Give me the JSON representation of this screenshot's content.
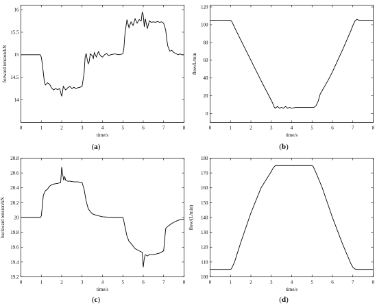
{
  "chart_data": [
    {
      "id": "a",
      "type": "line",
      "caption": "(a)",
      "xlabel": "time/s",
      "ylabel": "forward tension/kN",
      "xlim": [
        0,
        8
      ],
      "ylim": [
        13.5,
        16.1
      ],
      "xticks": [
        0,
        1,
        2,
        3,
        4,
        5,
        6,
        7,
        8
      ],
      "yticks": [
        14,
        14.5,
        15,
        15.5,
        16
      ],
      "ytick_labels": [
        "14",
        "14.5",
        "15",
        "15.5",
        "16"
      ],
      "series": [
        {
          "x": [
            0,
            0.95,
            1.0,
            1.05,
            1.1,
            1.15,
            1.2,
            1.25,
            1.3,
            1.4,
            1.5,
            1.6,
            1.7,
            1.8,
            1.9,
            2.0,
            2.03,
            2.08,
            2.15,
            2.2,
            2.3,
            2.4,
            2.5,
            2.6,
            2.7,
            2.8,
            2.9,
            3.0,
            3.1,
            3.15,
            3.2,
            3.25,
            3.3,
            3.35,
            3.4,
            3.5,
            3.55,
            3.6,
            3.7,
            3.8,
            3.9,
            4.0,
            4.1,
            4.2,
            4.3,
            4.4,
            4.6,
            4.8,
            5.0,
            5.05,
            5.1,
            5.2,
            5.3,
            5.4,
            5.5,
            5.6,
            5.7,
            5.8,
            5.9,
            5.95,
            6.0,
            6.05,
            6.1,
            6.2,
            6.3,
            6.4,
            6.5,
            6.6,
            6.7,
            6.8,
            6.9,
            7.0,
            7.1,
            7.15,
            7.2,
            7.3,
            7.4,
            7.5,
            7.6,
            7.7,
            7.8,
            7.9,
            8.0
          ],
          "y": [
            15.0,
            15.0,
            14.95,
            14.8,
            14.6,
            14.4,
            14.33,
            14.35,
            14.38,
            14.35,
            14.27,
            14.22,
            14.25,
            14.23,
            14.25,
            14.08,
            14.15,
            14.3,
            14.25,
            14.22,
            14.27,
            14.3,
            14.25,
            14.28,
            14.25,
            14.27,
            14.28,
            14.3,
            14.6,
            14.95,
            15.03,
            14.9,
            14.8,
            14.85,
            15.02,
            14.98,
            14.92,
            15.05,
            14.95,
            15.07,
            14.98,
            14.95,
            15.0,
            15.03,
            14.98,
            15.0,
            15.02,
            15.0,
            15.02,
            15.15,
            15.45,
            15.78,
            15.6,
            15.73,
            15.65,
            15.8,
            15.7,
            15.78,
            15.75,
            15.95,
            15.88,
            15.62,
            15.8,
            15.58,
            15.75,
            15.72,
            15.73,
            15.72,
            15.74,
            15.72,
            15.73,
            15.7,
            15.55,
            15.35,
            15.2,
            15.08,
            15.1,
            15.05,
            15.03,
            15.0,
            15.02,
            15.0,
            15.0
          ]
        }
      ]
    },
    {
      "id": "b",
      "type": "line",
      "caption": "(b)",
      "xlabel": "time/s",
      "ylabel": "flow/L/min",
      "xlim": [
        0,
        8
      ],
      "ylim": [
        -10,
        122
      ],
      "xticks": [
        0,
        1,
        2,
        3,
        4,
        5,
        6,
        7,
        8
      ],
      "yticks": [
        0,
        20,
        40,
        60,
        80,
        100,
        120
      ],
      "ytick_labels": [
        "0",
        "20",
        "40",
        "60",
        "80",
        "100",
        "120"
      ],
      "series": [
        {
          "x": [
            0,
            1.0,
            1.05,
            1.1,
            1.2,
            1.5,
            2.0,
            2.5,
            3.0,
            3.1,
            3.15,
            3.2,
            3.3,
            3.4,
            3.5,
            3.6,
            3.7,
            3.8,
            3.9,
            4.0,
            4.2,
            4.4,
            4.6,
            4.8,
            5.0,
            5.1,
            5.2,
            5.3,
            5.4,
            5.5,
            5.6,
            5.8,
            6.0,
            6.5,
            6.9,
            7.0,
            7.1,
            7.2,
            7.3,
            7.5,
            8.0
          ],
          "y": [
            105,
            105,
            104,
            102,
            97,
            83,
            60,
            37,
            15,
            10,
            7,
            6,
            8,
            6,
            7,
            6,
            8,
            6,
            7,
            6,
            7,
            7,
            7,
            7,
            7,
            7,
            9,
            14,
            22,
            26,
            30,
            38,
            47,
            72,
            93,
            99,
            104,
            106,
            105,
            105,
            105
          ]
        }
      ]
    },
    {
      "id": "c",
      "type": "line",
      "caption": "(c)",
      "xlabel": "time/s",
      "ylabel": "backward tension/kN",
      "xlim": [
        0,
        8
      ],
      "ylim": [
        19.2,
        20.8
      ],
      "xticks": [
        0,
        1,
        2,
        3,
        4,
        5,
        6,
        7,
        8
      ],
      "yticks": [
        19.2,
        19.4,
        19.6,
        19.8,
        20,
        20.2,
        20.4,
        20.6,
        20.8
      ],
      "ytick_labels": [
        "19.2",
        "19.4",
        "19.6",
        "19.8",
        "20",
        "20.2",
        "20.4",
        "20.6",
        "20.8"
      ],
      "series": [
        {
          "x": [
            0,
            0.95,
            1.0,
            1.05,
            1.1,
            1.2,
            1.3,
            1.4,
            1.5,
            1.6,
            1.8,
            1.95,
            2.0,
            2.05,
            2.1,
            2.15,
            2.2,
            2.3,
            2.4,
            2.6,
            2.8,
            3.0,
            3.1,
            3.2,
            3.3,
            3.4,
            3.5,
            3.7,
            4.0,
            4.5,
            5.0,
            5.05,
            5.1,
            5.2,
            5.3,
            5.4,
            5.6,
            5.8,
            5.95,
            6.0,
            6.05,
            6.1,
            6.2,
            6.3,
            6.5,
            6.8,
            7.0,
            7.05,
            7.1,
            7.2,
            7.4,
            7.6,
            7.8,
            8.0
          ],
          "y": [
            20.0,
            20.0,
            20.02,
            20.15,
            20.3,
            20.36,
            20.38,
            20.42,
            20.44,
            20.45,
            20.46,
            20.47,
            20.68,
            20.58,
            20.5,
            20.55,
            20.5,
            20.49,
            20.49,
            20.48,
            20.48,
            20.47,
            20.38,
            20.22,
            20.12,
            20.08,
            20.05,
            20.03,
            20.01,
            20.0,
            20.0,
            19.95,
            19.88,
            19.75,
            19.68,
            19.65,
            19.58,
            19.55,
            19.53,
            19.33,
            19.45,
            19.5,
            19.48,
            19.5,
            19.5,
            19.52,
            19.55,
            19.7,
            19.85,
            19.88,
            19.92,
            19.95,
            19.97,
            19.98
          ]
        }
      ]
    },
    {
      "id": "d",
      "type": "line",
      "caption": "(d)",
      "xlabel": "time/s",
      "ylabel": "flow/(L/min)",
      "xlim": [
        0,
        8
      ],
      "ylim": [
        100,
        180
      ],
      "xticks": [
        0,
        1,
        2,
        3,
        4,
        5,
        6,
        7,
        8
      ],
      "yticks": [
        100,
        110,
        120,
        130,
        140,
        150,
        160,
        170,
        180
      ],
      "ytick_labels": [
        "100",
        "110",
        "120",
        "130",
        "140",
        "150",
        "160",
        "170",
        "180"
      ],
      "series": [
        {
          "x": [
            0,
            1.0,
            1.05,
            1.1,
            1.2,
            1.5,
            2.0,
            2.5,
            3.0,
            3.1,
            3.2,
            3.3,
            4.0,
            4.5,
            5.0,
            5.05,
            5.1,
            5.2,
            5.5,
            6.0,
            6.5,
            6.9,
            7.0,
            7.1,
            7.2,
            7.5,
            8.0
          ],
          "y": [
            105,
            105,
            105.5,
            107,
            110,
            123,
            143,
            160,
            171,
            173.5,
            175,
            175,
            175,
            175,
            175,
            174.5,
            173,
            170,
            160,
            140,
            122,
            109,
            106.5,
            105.3,
            105,
            105,
            105
          ]
        }
      ]
    }
  ]
}
